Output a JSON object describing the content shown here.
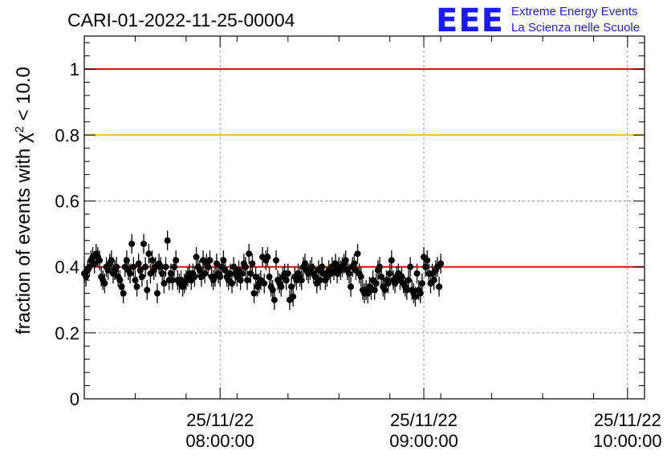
{
  "chart_data": {
    "type": "scatter",
    "title": "CARI-01-2022-11-25-00004",
    "ylabel": "fraction of events with χ² < 10.0",
    "xlabel": "",
    "xlim": [
      "25/11/22 07:20:00",
      "25/11/22 10:05:00"
    ],
    "ylim": [
      0,
      1.1
    ],
    "grid": true,
    "x_ticks": [
      {
        "date": "25/11/22",
        "time": "08:00:00"
      },
      {
        "date": "25/11/22",
        "time": "09:00:00"
      },
      {
        "date": "25/11/22",
        "time": "10:00:00"
      }
    ],
    "y_ticks": [
      "0",
      "0.2",
      "0.4",
      "0.6",
      "0.8",
      "1"
    ],
    "y_tick_values": [
      0,
      0.2,
      0.4,
      0.6,
      0.8,
      1.0
    ],
    "reference_lines": [
      {
        "y": 1.0,
        "color": "#e00000"
      },
      {
        "y": 0.8,
        "color": "#ffc000"
      },
      {
        "y": 0.4,
        "color": "#e00000"
      }
    ],
    "series": [
      {
        "marker_color": "#000000",
        "x_start": "25/11/22 07:20:00",
        "interval_seconds": 30,
        "error_bar": 0.03,
        "y": [
          0.38,
          0.37,
          0.39,
          0.4,
          0.42,
          0.43,
          0.41,
          0.44,
          0.43,
          0.42,
          0.37,
          0.36,
          0.35,
          0.4,
          0.39,
          0.41,
          0.42,
          0.38,
          0.39,
          0.4,
          0.37,
          0.36,
          0.34,
          0.32,
          0.4,
          0.42,
          0.39,
          0.38,
          0.47,
          0.4,
          0.36,
          0.34,
          0.41,
          0.39,
          0.37,
          0.47,
          0.4,
          0.33,
          0.44,
          0.38,
          0.42,
          0.39,
          0.4,
          0.32,
          0.41,
          0.4,
          0.38,
          0.35,
          0.4,
          0.48,
          0.36,
          0.38,
          0.36,
          0.4,
          0.42,
          0.36,
          0.35,
          0.36,
          0.34,
          0.35,
          0.36,
          0.37,
          0.38,
          0.36,
          0.38,
          0.37,
          0.43,
          0.4,
          0.39,
          0.37,
          0.42,
          0.38,
          0.41,
          0.4,
          0.42,
          0.37,
          0.36,
          0.37,
          0.41,
          0.38,
          0.37,
          0.4,
          0.42,
          0.39,
          0.37,
          0.36,
          0.38,
          0.35,
          0.4,
          0.38,
          0.37,
          0.39,
          0.36,
          0.38,
          0.41,
          0.4,
          0.36,
          0.44,
          0.38,
          0.41,
          0.32,
          0.37,
          0.34,
          0.35,
          0.36,
          0.43,
          0.35,
          0.42,
          0.43,
          0.37,
          0.34,
          0.33,
          0.3,
          0.42,
          0.36,
          0.35,
          0.34,
          0.37,
          0.38,
          0.36,
          0.38,
          0.3,
          0.34,
          0.31,
          0.37,
          0.36,
          0.38,
          0.37,
          0.36,
          0.4,
          0.41,
          0.39,
          0.38,
          0.39,
          0.4,
          0.38,
          0.37,
          0.35,
          0.39,
          0.36,
          0.4,
          0.38,
          0.36,
          0.37,
          0.39,
          0.38,
          0.4,
          0.39,
          0.41,
          0.38,
          0.4,
          0.39,
          0.4,
          0.41,
          0.42,
          0.39,
          0.38,
          0.34,
          0.4,
          0.41,
          0.39,
          0.44,
          0.38,
          0.37,
          0.33,
          0.32,
          0.33,
          0.32,
          0.34,
          0.33,
          0.36,
          0.33,
          0.35,
          0.39,
          0.4,
          0.37,
          0.34,
          0.33,
          0.36,
          0.35,
          0.38,
          0.42,
          0.36,
          0.35,
          0.37,
          0.38,
          0.36,
          0.37,
          0.35,
          0.34,
          0.33,
          0.36,
          0.4,
          0.33,
          0.32,
          0.31,
          0.38,
          0.33,
          0.32,
          0.35,
          0.43,
          0.4,
          0.42,
          0.38,
          0.35,
          0.38,
          0.36,
          0.39,
          0.4,
          0.34,
          0.41
        ]
      }
    ]
  },
  "logo": {
    "mark": "EEE",
    "line1": "Extreme Energy Events",
    "line2": "La Scienza nelle Scuole",
    "color": "#1a1aff"
  }
}
